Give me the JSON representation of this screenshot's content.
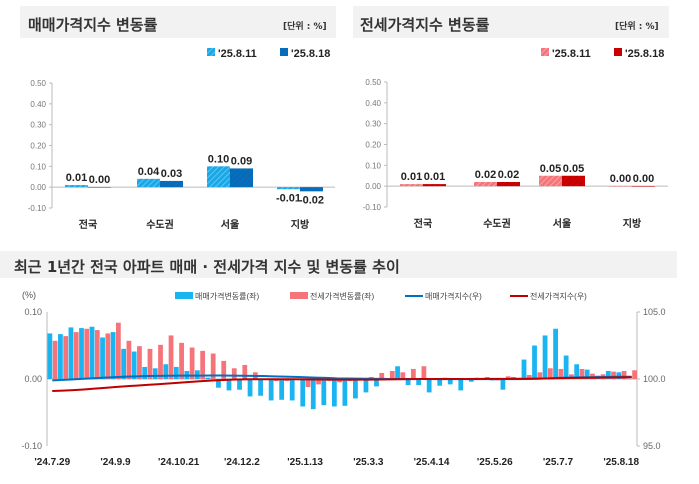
{
  "panels": {
    "sale": {
      "title": "매매가격지수 변동률",
      "unit": "[단위 : %]"
    },
    "jeonse": {
      "title": "전세가격지수 변동률",
      "unit": "[단위 : %]"
    },
    "trend": {
      "title": "최근 1년간 전국 아파트 매매 · 전세가격 지수 및 변동률 추이"
    }
  },
  "chart_data": [
    {
      "type": "bar",
      "title": "매매가격지수 변동률",
      "ylim": [
        -0.1,
        0.5
      ],
      "yticks": [
        "0.50",
        "0.40",
        "0.30",
        "0.20",
        "0.10",
        "0.00",
        "-0.10"
      ],
      "categories": [
        "전국",
        "수도권",
        "서울",
        "지방"
      ],
      "series": [
        {
          "name": "'25.8.11",
          "values": [
            0.01,
            0.04,
            0.1,
            -0.01
          ],
          "labels": [
            "0.01",
            "0.04",
            "0.10",
            "-0.01"
          ],
          "color": "#1aa7e8"
        },
        {
          "name": "'25.8.18",
          "values": [
            0.0,
            0.03,
            0.09,
            -0.02
          ],
          "labels": [
            "0.00",
            "0.03",
            "0.09",
            "-0.02"
          ],
          "color": "#0070c0"
        }
      ]
    },
    {
      "type": "bar",
      "title": "전세가격지수 변동률",
      "ylim": [
        -0.1,
        0.5
      ],
      "yticks": [
        "0.50",
        "0.40",
        "0.30",
        "0.20",
        "0.10",
        "0.00",
        "-0.10"
      ],
      "categories": [
        "전국",
        "수도권",
        "서울",
        "지방"
      ],
      "series": [
        {
          "name": "'25.8.11",
          "values": [
            0.01,
            0.02,
            0.05,
            0.0
          ],
          "labels": [
            "0.01",
            "0.02",
            "0.05",
            "0.00"
          ],
          "color": "#f4747a"
        },
        {
          "name": "'25.8.18",
          "values": [
            0.01,
            0.02,
            0.05,
            0.0
          ],
          "labels": [
            "0.01",
            "0.02",
            "0.05",
            "0.00"
          ],
          "color": "#d10000"
        }
      ]
    },
    {
      "type": "bar+line",
      "title": "최근 1년간 전국 아파트 매매 · 전세가격 지수 및 변동률 추이",
      "ylabel_left": "(%)",
      "ylim_left": [
        -0.1,
        0.1
      ],
      "yticks_left": [
        "0.10",
        "0.00",
        "-0.10"
      ],
      "ylim_right": [
        95.0,
        105.0
      ],
      "yticks_right": [
        "105.0",
        "100.0",
        "95.0"
      ],
      "xtick_labels": [
        "'24.7.29",
        "'24.9.9",
        "'24.10.21",
        "'24.12.2",
        "'25.1.13",
        "'25.3.3",
        "'25.4.14",
        "'25.5.26",
        "'25.7.7",
        "'25.8.18"
      ],
      "legend_position": "top",
      "series": [
        {
          "name": "매매가격변동률(좌)",
          "kind": "bar",
          "axis": "left",
          "color": "#1ab4f0",
          "values": [
            0.068,
            0.067,
            0.077,
            0.076,
            0.078,
            0.062,
            0.07,
            0.045,
            0.041,
            0.018,
            0.016,
            0.022,
            0.018,
            0.012,
            0.013,
            0.002,
            -0.013,
            -0.017,
            -0.016,
            -0.026,
            -0.025,
            -0.032,
            -0.031,
            -0.032,
            -0.041,
            -0.045,
            -0.039,
            -0.041,
            -0.04,
            -0.029,
            -0.02,
            -0.011,
            0.0,
            0.019,
            -0.009,
            -0.009,
            -0.02,
            -0.01,
            -0.008,
            -0.017,
            -0.004,
            0.0,
            -0.002,
            -0.016,
            0.003,
            0.029,
            0.05,
            0.065,
            0.075,
            0.035,
            0.022,
            0.014,
            0.005,
            0.012,
            0.01,
            0.0
          ]
        },
        {
          "name": "전세가격변동률(좌)",
          "kind": "bar",
          "axis": "left",
          "color": "#f4747a",
          "values": [
            0.057,
            0.064,
            0.07,
            0.075,
            0.073,
            0.068,
            0.084,
            0.057,
            0.049,
            0.045,
            0.051,
            0.065,
            0.054,
            0.047,
            0.042,
            0.038,
            0.027,
            0.016,
            0.021,
            0.01,
            0.0,
            -0.003,
            -0.003,
            0.0,
            -0.012,
            -0.008,
            -0.003,
            -0.005,
            -0.003,
            -0.002,
            0.003,
            0.009,
            0.012,
            0.01,
            0.015,
            0.019,
            0.0,
            0.002,
            0.0,
            0.001,
            0.002,
            0.003,
            -0.002,
            0.004,
            0.002,
            0.006,
            0.01,
            0.016,
            0.015,
            0.007,
            0.015,
            0.008,
            0.007,
            0.011,
            0.012,
            0.013
          ]
        },
        {
          "name": "매매가격지수(우)",
          "kind": "line",
          "axis": "right",
          "color": "#0070c0",
          "values": [
            99.9,
            99.93,
            99.97,
            100.02,
            100.06,
            100.1,
            100.14,
            100.18,
            100.2,
            100.22,
            100.23,
            100.24,
            100.25,
            100.25,
            100.25,
            100.26,
            100.26,
            100.25,
            100.24,
            100.23,
            100.22,
            100.2,
            100.18,
            100.16,
            100.13,
            100.1,
            100.08,
            100.05,
            100.04,
            100.03,
            100.02,
            100.01,
            100.0,
            100.0,
            100.0,
            100.0,
            99.99,
            99.99,
            99.99,
            99.99,
            99.99,
            99.99,
            99.99,
            99.99,
            99.99,
            100.0,
            100.02,
            100.05,
            100.08,
            100.1,
            100.12,
            100.13,
            100.14,
            100.16,
            100.17,
            100.17
          ]
        },
        {
          "name": "전세가격지수(우)",
          "kind": "line",
          "axis": "right",
          "color": "#c00000",
          "values": [
            99.1,
            99.13,
            99.17,
            99.22,
            99.28,
            99.34,
            99.4,
            99.46,
            99.51,
            99.56,
            99.61,
            99.66,
            99.72,
            99.78,
            99.83,
            99.88,
            99.92,
            99.95,
            99.97,
            99.98,
            99.98,
            99.98,
            99.98,
            99.98,
            99.97,
            99.96,
            99.96,
            99.95,
            99.95,
            99.95,
            99.95,
            99.96,
            99.97,
            99.98,
            99.99,
            100.0,
            100.0,
            100.0,
            100.0,
            100.0,
            100.0,
            100.01,
            100.01,
            100.01,
            100.01,
            100.02,
            100.03,
            100.04,
            100.06,
            100.07,
            100.08,
            100.09,
            100.1,
            100.11,
            100.12,
            100.13
          ]
        }
      ]
    }
  ]
}
